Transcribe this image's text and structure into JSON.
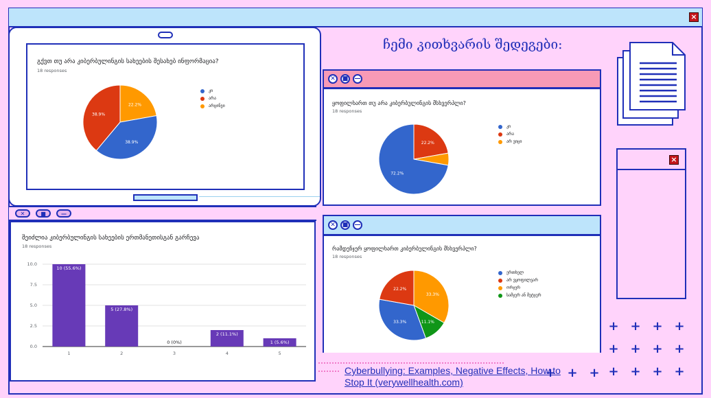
{
  "heading": "ჩემი კითხვარის შედეგები:",
  "close_glyph": "×",
  "colors": {
    "blue": "#3366cc",
    "red": "#dc3912",
    "orange": "#ff9900",
    "green": "#109618",
    "purple": "#673ab7",
    "navy": "#1f2fb8"
  },
  "icons": {
    "document": "document-stack-icon",
    "close": "close-icon",
    "minimize": "minimize-icon",
    "stop": "stop-icon"
  },
  "survey1": {
    "question": "გქვთ თუ არა კიბერბულინგის სახეების შესახებ ინფორმაცია?",
    "responses": "18 responses",
    "legend": [
      "კი",
      "არა",
      "არცინვი"
    ],
    "slice_labels": [
      "38.9%",
      "38.9%",
      "22.2%"
    ]
  },
  "survey2": {
    "question": "ყოფილხართ თუ არა კიბერბულინგის მსხვერპლი?",
    "responses": "18 responses",
    "legend": [
      "კი",
      "არა",
      "არ ვიცი"
    ],
    "slice_labels": [
      "72.2%",
      "22.2%"
    ]
  },
  "survey3": {
    "question": "რამდენჯერ ყოფილხართ კიბერბულინგის მსხვერპლი?",
    "responses": "18 responses",
    "legend": [
      "ერთხელ",
      "არ ვყოფილვარ",
      "ორჯერ",
      "სამჯერ ან მეტჯერ"
    ],
    "slice_labels": [
      "33.3%",
      "33.3%",
      "22.2%",
      "11.1%"
    ]
  },
  "survey4": {
    "question": "შეიძლია კიბერბულინგის სახეების ერთმანეთისგან გარჩევა",
    "responses": "18 responses"
  },
  "chart_data": [
    {
      "type": "pie",
      "title": "გქვთ თუ არა კიბერბულინგის სახეების შესახებ ინფორმაცია?",
      "labels": [
        "კი",
        "არა",
        "არცინვი"
      ],
      "values": [
        38.9,
        38.9,
        22.2
      ]
    },
    {
      "type": "pie",
      "title": "ყოფილხართ თუ არა კიბერბულინგის მსხვერპლი?",
      "labels": [
        "კი",
        "არა",
        "არ ვიცი"
      ],
      "values": [
        72.2,
        22.2,
        5.6
      ]
    },
    {
      "type": "pie",
      "title": "რამდენჯერ ყოფილხართ კიბერბულინგის მსხვერპლი?",
      "labels": [
        "ერთხელ",
        "არ ვყოფილვარ",
        "ორჯერ",
        "სამჯერ ან მეტჯერ"
      ],
      "values": [
        33.3,
        22.2,
        33.3,
        11.1
      ]
    },
    {
      "type": "bar",
      "title": "შეიძლია კიბერბულინგის სახეების ერთმანეთისგან გარჩევა",
      "categories": [
        "1",
        "2",
        "3",
        "4",
        "5"
      ],
      "values": [
        10,
        5,
        0,
        2,
        1
      ],
      "labels": [
        "10 (55.6%)",
        "5 (27.8%)",
        "0 (0%)",
        "2 (11.1%)",
        "1 (5.6%)"
      ],
      "ylim": [
        0,
        10
      ],
      "yticks": [
        "0.0",
        "2.5",
        "5.0",
        "7.5",
        "10.0"
      ]
    }
  ],
  "link_text": "Cyberbullying: Examples, Negative Effects, How to Stop It (verywellhealth.com)"
}
